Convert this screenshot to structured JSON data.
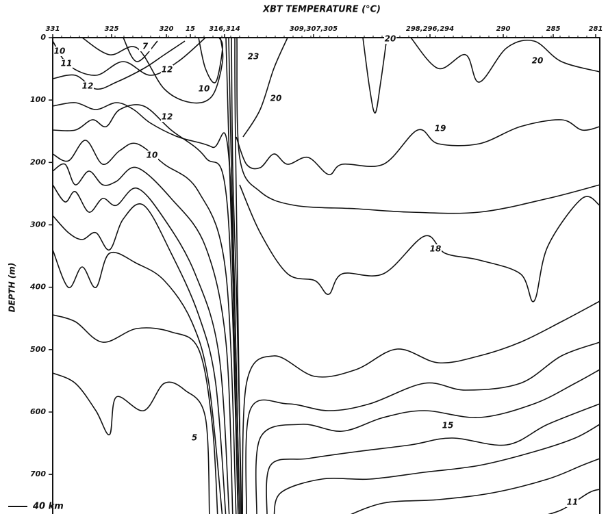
{
  "chart_data": {
    "type": "contour",
    "title": "XBT TEMPERATURE (°C)",
    "y_label": "DEPTH (m)",
    "ylim": [
      0,
      770
    ],
    "yticks": [
      0,
      100,
      200,
      300,
      400,
      500,
      600,
      700
    ],
    "stations": [
      "331",
      "325",
      "320",
      "15",
      "316,314",
      "309,307,305",
      "298,296,294",
      "290",
      "285",
      "281"
    ],
    "contour_labels": [
      "10",
      "11",
      "7",
      "12",
      "10",
      "12",
      "12",
      "23",
      "20",
      "20",
      "20",
      "19",
      "10",
      "18",
      "5",
      "15",
      "11"
    ],
    "scale_label": "40 km",
    "color": "#111111"
  }
}
